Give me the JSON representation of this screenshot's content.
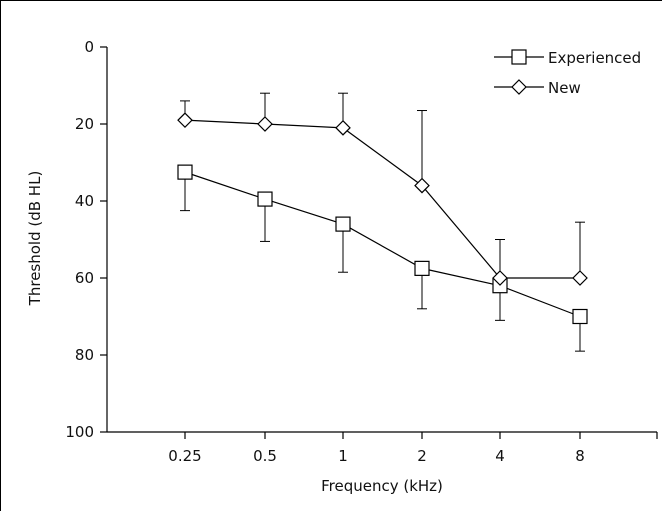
{
  "chart_data": {
    "type": "line",
    "xlabel": "Frequency (kHz)",
    "ylabel": "Threshold (dB HL)",
    "categories": [
      "0.25",
      "0.5",
      "1",
      "2",
      "4",
      "8"
    ],
    "ylim": [
      0,
      100
    ],
    "y_inverted": true,
    "y_ticks": [
      "0",
      "20",
      "40",
      "60",
      "80",
      "100"
    ],
    "y_tick_values": [
      0,
      20,
      40,
      60,
      80,
      100
    ],
    "grid": false,
    "legend_position": "top-right",
    "series": [
      {
        "name": "Experienced",
        "marker": "square",
        "values": [
          32.5,
          39.5,
          46,
          57.5,
          62,
          70
        ],
        "error_upper": [
          42.5,
          50.5,
          58.5,
          68,
          71,
          79
        ],
        "error_lower": [
          null,
          null,
          null,
          null,
          null,
          null
        ]
      },
      {
        "name": "New",
        "marker": "diamond",
        "values": [
          19,
          20,
          21,
          36,
          60,
          60
        ],
        "error_upper": [
          null,
          null,
          null,
          null,
          null,
          null
        ],
        "error_lower": [
          14,
          12,
          12,
          16.5,
          50,
          45.5
        ]
      }
    ]
  }
}
